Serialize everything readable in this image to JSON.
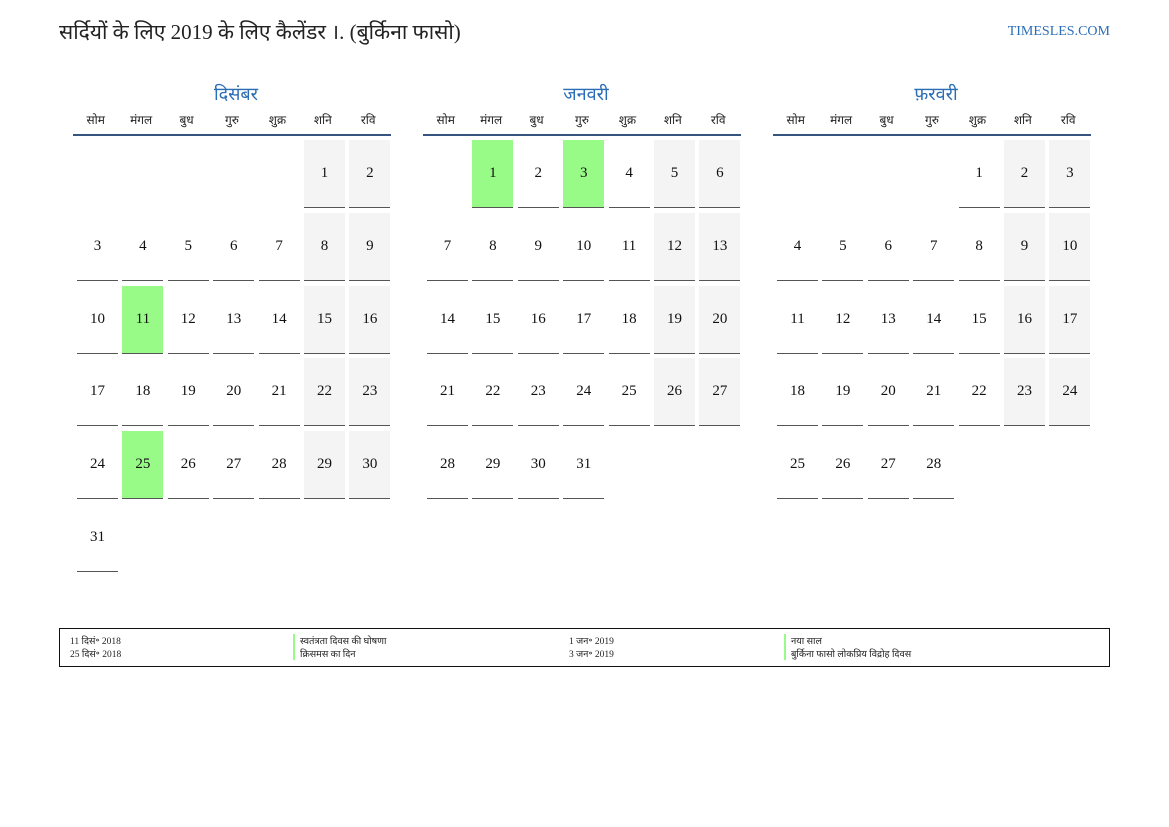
{
  "header": {
    "title": "सर्दियों के लिए 2019 के लिए कैलेंडर ।. (बुर्किना फासो)",
    "site": "TIMESLES.COM"
  },
  "weekdays": [
    "सोम",
    "मंगल",
    "बुध",
    "गुरु",
    "शुक्र",
    "शनि",
    "रवि"
  ],
  "colors": {
    "holiday": "#98fb87",
    "weekend": "#f4f4f4",
    "accent": "#2a6db5"
  },
  "months": [
    {
      "name": "दिसंबर",
      "offset": 5,
      "days": 31,
      "holidays": [
        11,
        25
      ]
    },
    {
      "name": "जनवरी",
      "offset": 1,
      "days": 31,
      "holidays": [
        1,
        3
      ]
    },
    {
      "name": "फ़रवरी",
      "offset": 4,
      "days": 28,
      "holidays": []
    }
  ],
  "legend": [
    {
      "date": "11 दिसं॰ 2018",
      "name": "स्वतंत्रता दिवस की घोषणा"
    },
    {
      "date": "25 दिसं॰ 2018",
      "name": "क्रिसमस का दिन"
    },
    {
      "date": "1 जन॰ 2019",
      "name": "नया साल"
    },
    {
      "date": "3 जन॰ 2019",
      "name": "बुर्किना फासो लोकप्रिय विद्रोह दिवस"
    }
  ]
}
